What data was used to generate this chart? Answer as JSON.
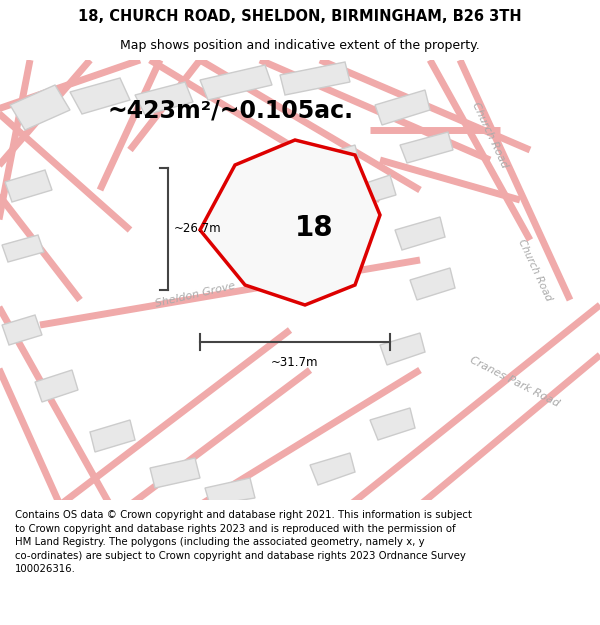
{
  "title_line1": "18, CHURCH ROAD, SHELDON, BIRMINGHAM, B26 3TH",
  "title_line2": "Map shows position and indicative extent of the property.",
  "area_label": "~423m²/~0.105ac.",
  "property_number": "18",
  "dim_vertical": "~26.7m",
  "dim_horizontal": "~31.7m",
  "footer_text": "Contains OS data © Crown copyright and database right 2021. This information is subject\nto Crown copyright and database rights 2023 and is reproduced with the permission of\nHM Land Registry. The polygons (including the associated geometry, namely x, y\nco-ordinates) are subject to Crown copyright and database rights 2023 Ordnance Survey\n100026316.",
  "bg_color": "#f5f5f5",
  "road_color": "#f0aaaa",
  "building_fill": "#e8e8e8",
  "building_stroke": "#cccccc",
  "property_fill": "#f8f8f8",
  "property_stroke": "#dd0000",
  "road_label_color": "#aaaaaa",
  "dim_color": "#444444",
  "title_fontsize": 10.5,
  "subtitle_fontsize": 9,
  "area_fontsize": 17,
  "property_num_fontsize": 20,
  "footer_fontsize": 7.3,
  "road_label_fontsize": 8.0,
  "road_lw": 5,
  "building_lw": 1.0,
  "property_lw": 2.5
}
